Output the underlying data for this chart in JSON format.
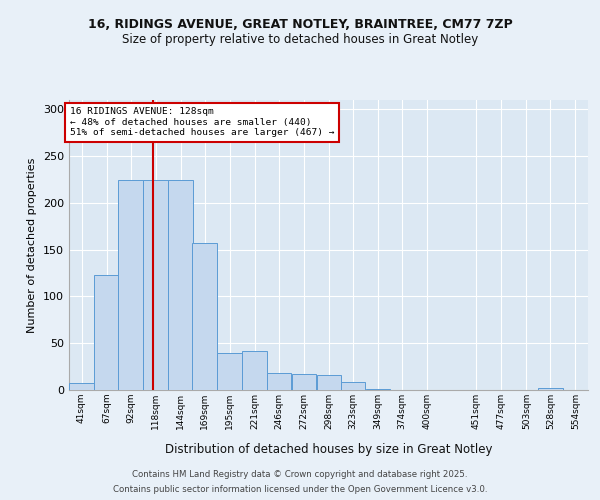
{
  "title1": "16, RIDINGS AVENUE, GREAT NOTLEY, BRAINTREE, CM77 7ZP",
  "title2": "Size of property relative to detached houses in Great Notley",
  "xlabel": "Distribution of detached houses by size in Great Notley",
  "ylabel": "Number of detached properties",
  "categories": [
    "41sqm",
    "67sqm",
    "92sqm",
    "118sqm",
    "144sqm",
    "169sqm",
    "195sqm",
    "221sqm",
    "246sqm",
    "272sqm",
    "298sqm",
    "323sqm",
    "349sqm",
    "374sqm",
    "400sqm",
    "451sqm",
    "477sqm",
    "503sqm",
    "528sqm",
    "554sqm"
  ],
  "bar_heights": [
    7,
    123,
    225,
    225,
    225,
    157,
    40,
    42,
    18,
    17,
    16,
    9,
    1,
    0,
    0,
    0,
    0,
    0,
    2,
    0
  ],
  "bar_color": "#c5d8ee",
  "bar_edge_color": "#5b9bd5",
  "background_color": "#dce8f3",
  "grid_color": "#ffffff",
  "vline_color": "#cc0000",
  "annotation_title": "16 RIDINGS AVENUE: 128sqm",
  "annotation_line1": "← 48% of detached houses are smaller (440)",
  "annotation_line2": "51% of semi-detached houses are larger (467) →",
  "annotation_box_color": "#cc0000",
  "footer1": "Contains HM Land Registry data © Crown copyright and database right 2025.",
  "footer2": "Contains public sector information licensed under the Open Government Licence v3.0.",
  "ylim": [
    0,
    310
  ],
  "yticks": [
    0,
    50,
    100,
    150,
    200,
    250,
    300
  ],
  "bin_starts": [
    41,
    67,
    92,
    118,
    144,
    169,
    195,
    221,
    246,
    272,
    298,
    323,
    349,
    374,
    400,
    451,
    477,
    503,
    528,
    554
  ],
  "bin_width": 26,
  "vline_x": 128
}
